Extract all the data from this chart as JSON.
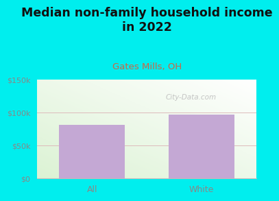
{
  "title": "Median non-family household income\nin 2022",
  "subtitle": "Gates Mills, OH",
  "categories": [
    "All",
    "White"
  ],
  "values": [
    82000,
    97000
  ],
  "bar_color": "#c4a8d4",
  "bg_color": "#00eeee",
  "ylim": [
    0,
    150000
  ],
  "yticks": [
    0,
    50000,
    100000,
    150000
  ],
  "ytick_labels": [
    "$0",
    "$50k",
    "$100k",
    "$150k"
  ],
  "title_fontsize": 12.5,
  "subtitle_color": "#cc6644",
  "title_color": "#111111",
  "watermark": "City-Data.com",
  "hline_color": "#ddbbbb",
  "tick_color": "#888888",
  "subtitle_fontsize": 9.5
}
